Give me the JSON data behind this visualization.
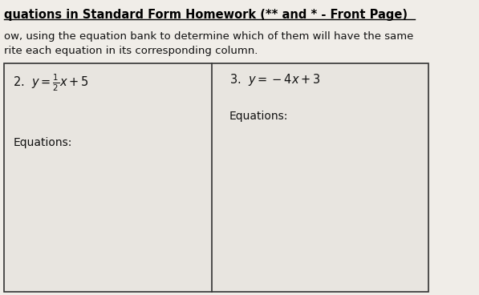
{
  "title": "quations in Standard Form Homework (** and * - Front Page)",
  "line1": "ow, using the equation bank to determine which of them will have the same",
  "line2": "rite each equation in its corresponding column.",
  "col1_header": "2.  $y = \\frac{1}{2}x + 5$",
  "col2_header": "3.  $y = -4x + 3$",
  "col1_label": "Equations:",
  "col2_label": "Equations:",
  "bg_color": "#f0ede8",
  "table_bg": "#e8e5e0",
  "border_color": "#333333",
  "text_color": "#111111",
  "title_color": "#000000"
}
